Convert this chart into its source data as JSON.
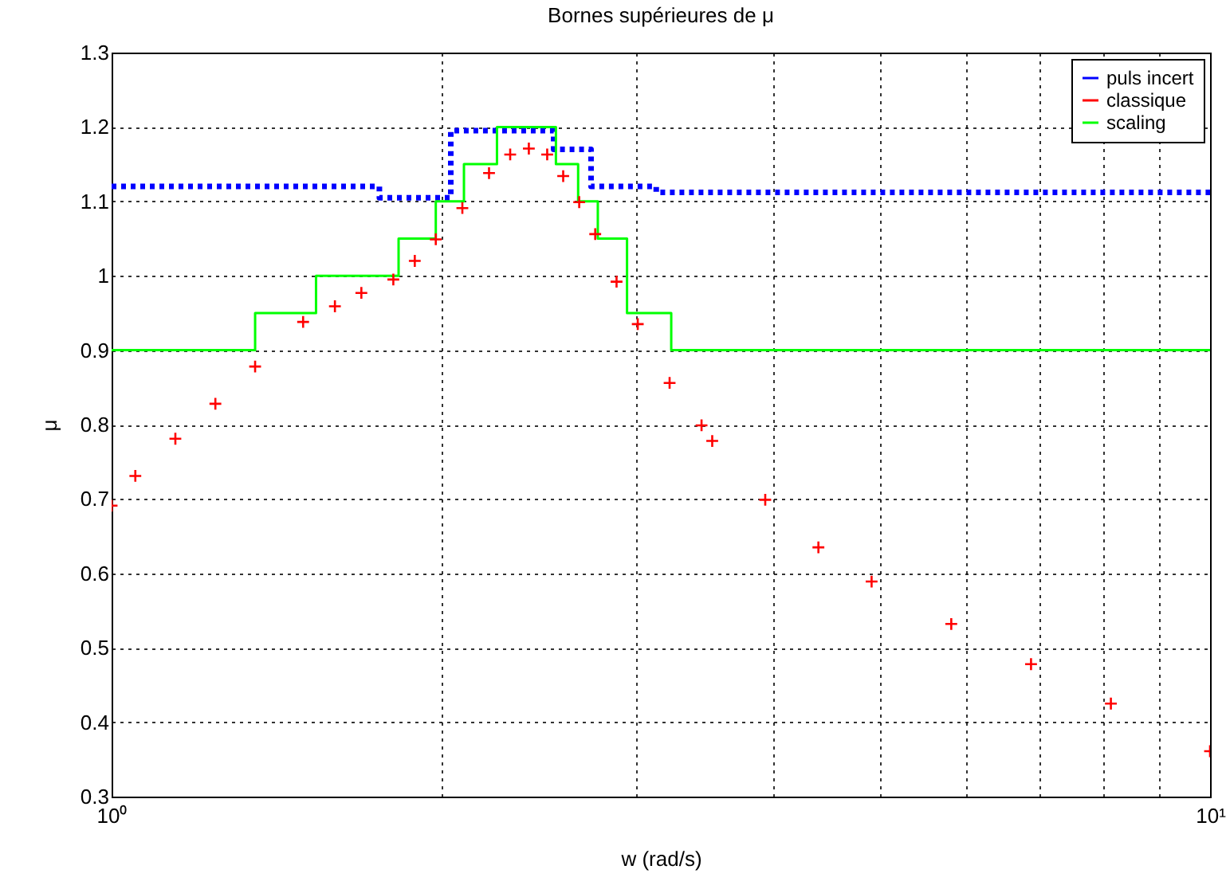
{
  "chart_data": {
    "type": "step",
    "title": "Bornes supérieures de μ",
    "xlabel": "w (rad/s)",
    "ylabel": "μ",
    "log": "x",
    "xlim": [
      1,
      10
    ],
    "ylim": [
      0.3,
      1.3
    ],
    "xticks": [
      {
        "value": 1,
        "label": "10⁰"
      },
      {
        "value": 2,
        "label": null
      },
      {
        "value": 3,
        "label": null
      },
      {
        "value": 4,
        "label": null
      },
      {
        "value": 5,
        "label": null
      },
      {
        "value": 6,
        "label": null
      },
      {
        "value": 7,
        "label": null
      },
      {
        "value": 8,
        "label": null
      },
      {
        "value": 9,
        "label": null
      },
      {
        "value": 10,
        "label": "10¹"
      }
    ],
    "yticks": [
      0.3,
      0.4,
      0.5,
      0.6,
      0.7,
      0.8,
      0.9,
      1,
      1.1,
      1.2,
      1.3
    ],
    "grid": true,
    "legend": "top right",
    "series": [
      {
        "name": "puls incert",
        "color": "#0000ff",
        "line_style": "dotted",
        "x": [
          1,
          1.753,
          2.036,
          2.526,
          2.732,
          3.132,
          10
        ],
        "values": [
          1.12,
          1.105,
          1.195,
          1.17,
          1.12,
          1.112,
          1.112
        ]
      },
      {
        "name": "classique",
        "type": "scatter",
        "color": "#ff0000",
        "marker": "cross",
        "x": [
          1,
          1.051,
          1.143,
          1.243,
          1.351,
          1.494,
          1.597,
          1.688,
          1.805,
          1.888,
          1.973,
          2.086,
          2.206,
          2.306,
          2.398,
          2.492,
          2.577,
          2.665,
          2.756,
          2.882,
          3.013,
          3.221,
          3.444,
          3.522,
          3.936,
          4.4,
          4.919,
          5.813,
          6.871,
          8.123,
          10
        ],
        "values": [
          0.691,
          0.731,
          0.781,
          0.828,
          0.878,
          0.938,
          0.959,
          0.977,
          0.995,
          1.02,
          1.049,
          1.091,
          1.138,
          1.163,
          1.171,
          1.163,
          1.134,
          1.099,
          1.056,
          0.992,
          0.935,
          0.856,
          0.799,
          0.778,
          0.699,
          0.635,
          0.589,
          0.532,
          0.478,
          0.425,
          0.361
        ]
      },
      {
        "name": "scaling",
        "color": "#00ff00",
        "line_style": "solid",
        "x": [
          1,
          1.351,
          1.535,
          1.825,
          1.973,
          2.093,
          2.243,
          2.538,
          2.659,
          2.771,
          2.946,
          3.232,
          10
        ],
        "values": [
          0.9,
          0.95,
          1,
          1.05,
          1.1,
          1.15,
          1.2,
          1.15,
          1.1,
          1.05,
          0.95,
          0.9,
          0.9
        ]
      }
    ]
  }
}
